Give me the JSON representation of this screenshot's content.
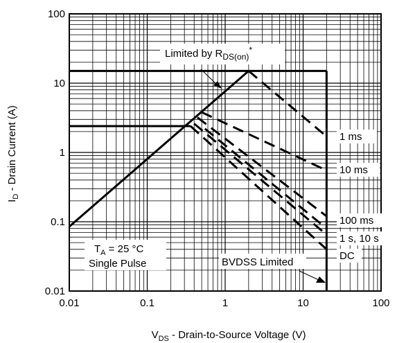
{
  "chart_data": {
    "type": "line",
    "x_scale": "log",
    "y_scale": "log",
    "xlim": [
      0.01,
      100
    ],
    "ylim": [
      0.01,
      100
    ],
    "grid": true,
    "x_ticks": [
      "0.01",
      "0.1",
      "1",
      "10",
      "100"
    ],
    "y_ticks": [
      "0.01",
      "0.1",
      "1",
      "10",
      "100"
    ],
    "xlabel": {
      "main": "V",
      "sub": "DS",
      "rest": " - Drain-to-Source Voltage (V)"
    },
    "ylabel": {
      "main": "I",
      "sub": "D",
      "rest": " - Drain Current (A)"
    },
    "rds_limit": {
      "label_pre": "Limited by R",
      "label_sub": "DS(on)",
      "label_sup": "*",
      "points": [
        [
          0.01,
          0.085
        ],
        [
          2.0,
          15
        ]
      ]
    },
    "boundaries": {
      "current_limit_high": [
        [
          0.01,
          15
        ],
        [
          20,
          15
        ]
      ],
      "current_limit_low": [
        [
          0.01,
          2.4
        ],
        [
          0.36,
          2.4
        ]
      ],
      "voltage_limit": [
        [
          20,
          0.01
        ],
        [
          20,
          15
        ]
      ]
    },
    "series": [
      {
        "name": "1 ms",
        "style": "dashed",
        "points": [
          [
            2.0,
            15
          ],
          [
            20,
            1.7
          ]
        ]
      },
      {
        "name": "10 ms",
        "style": "dashed",
        "points": [
          [
            0.5,
            3.8
          ],
          [
            20,
            0.55
          ]
        ]
      },
      {
        "name": "100 ms",
        "style": "dashed",
        "points": [
          [
            0.44,
            3.2
          ],
          [
            20,
            0.12
          ]
        ]
      },
      {
        "name": "1 s, 10 s",
        "style": "dashed",
        "points": [
          [
            0.4,
            2.6
          ],
          [
            20,
            0.065
          ]
        ]
      },
      {
        "name": "DC",
        "style": "dashed",
        "points": [
          [
            0.36,
            2.4
          ],
          [
            20,
            0.04
          ]
        ]
      },
      {
        "name": "",
        "style": "dashed",
        "points": [
          [
            0.55,
            2.2
          ],
          [
            20,
            0.08
          ]
        ]
      }
    ],
    "annotations": {
      "conditions_line1_main": "T",
      "conditions_line1_sub": "A",
      "conditions_line1_rest": " = 25 °C",
      "conditions_line2": "Single Pulse",
      "bvdss": "BVDSS Limited"
    }
  }
}
